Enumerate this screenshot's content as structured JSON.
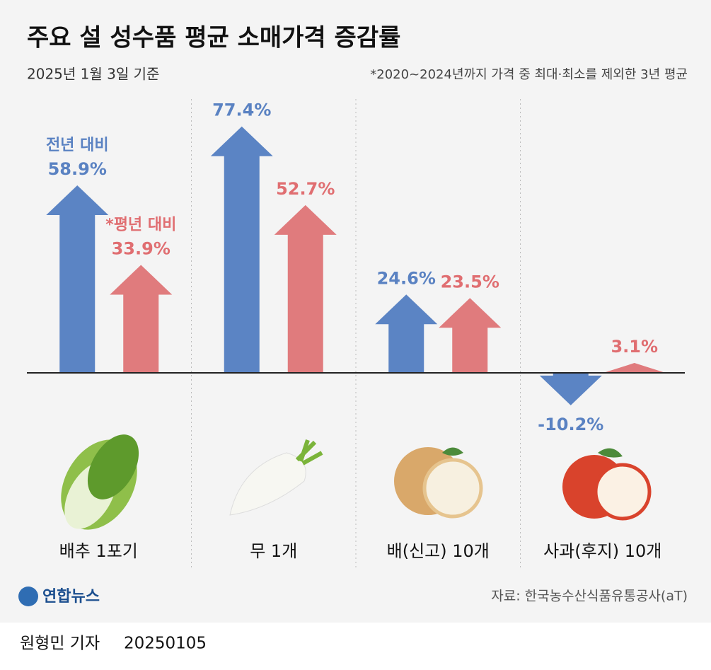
{
  "chart_data": {
    "type": "arrow-bar",
    "title": "주요 설 성수품 평균 소매가격 증감률",
    "subtitle": "2025년 1월 3일 기준",
    "note": "*2020~2024년까지 가격 중 최대·최소를 제외한 3년 평균",
    "categories": [
      "배추 1포기",
      "무 1개",
      "배(신고) 10개",
      "사과(후지) 10개"
    ],
    "series": [
      {
        "name": "전년 대비",
        "color": "#5b84c4",
        "label_color": "#5a82c2",
        "values": [
          58.9,
          77.4,
          24.6,
          -10.2
        ],
        "value_labels": [
          "58.9%",
          "77.4%",
          "24.6%",
          "-10.2%"
        ]
      },
      {
        "name": "*평년 대비",
        "color": "#e07b7d",
        "label_color": "#e06e71",
        "values": [
          33.9,
          52.7,
          23.5,
          3.1
        ],
        "value_labels": [
          "33.9%",
          "52.7%",
          "23.5%",
          "3.1%"
        ]
      }
    ],
    "ylim": [
      -20,
      80
    ],
    "source": "자료: 한국농수산식품유통공사(aT)",
    "logo": "연합뉴스",
    "byline": "원형민 기자",
    "date": "20250105"
  }
}
